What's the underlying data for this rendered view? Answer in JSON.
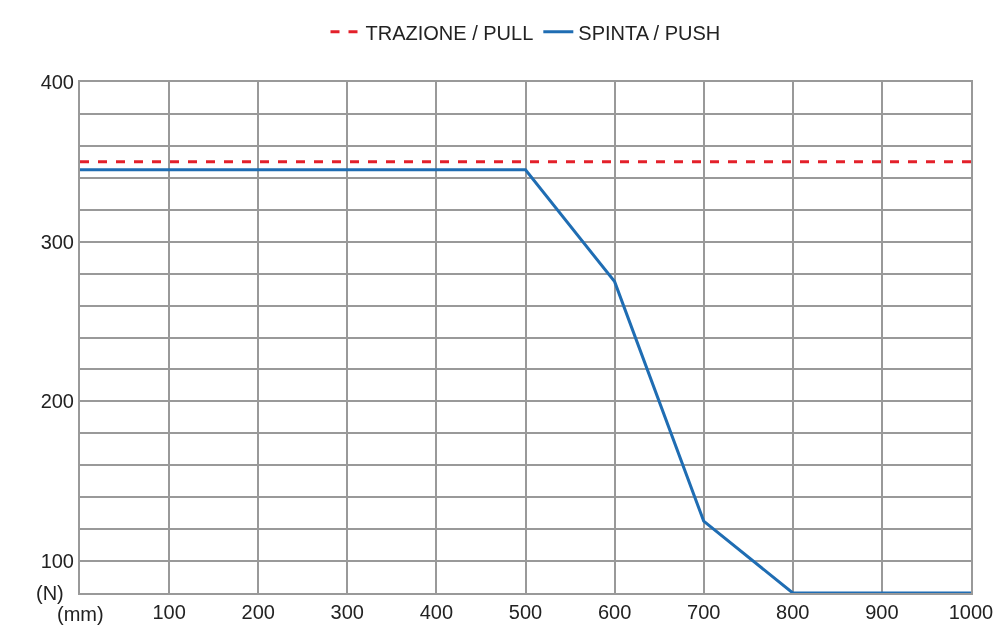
{
  "chart_data": {
    "type": "line",
    "xlabel": "(mm)",
    "ylabel": "(N)",
    "series": [
      {
        "name": "TRAZIONE / PULL",
        "color": "#e3202a",
        "line_style": "dashed",
        "x": [
          0,
          1000
        ],
        "values": [
          350,
          350
        ]
      },
      {
        "name": "SPINTA / PUSH",
        "color": "#1f6db3",
        "line_style": "solid",
        "x": [
          0,
          500,
          600,
          700,
          800,
          1000
        ],
        "values": [
          345,
          345,
          275,
          125,
          80,
          80
        ]
      }
    ],
    "xlim": [
      0,
      1000
    ],
    "xticks": [
      100,
      200,
      300,
      400,
      500,
      600,
      700,
      800,
      900,
      1000
    ],
    "ylim": [
      80,
      400
    ],
    "yticks": [
      {
        "value": 80,
        "label": null
      },
      100,
      {
        "value": 120,
        "label": null
      },
      {
        "value": 140,
        "label": null
      },
      {
        "value": 160,
        "label": null
      },
      {
        "value": 180,
        "label": null
      },
      200,
      {
        "value": 220,
        "label": null
      },
      {
        "value": 240,
        "label": null
      },
      {
        "value": 260,
        "label": null
      },
      {
        "value": 280,
        "label": null
      },
      300,
      {
        "value": 320,
        "label": null
      },
      {
        "value": 340,
        "label": null
      },
      {
        "value": 360,
        "label": null
      },
      {
        "value": 380,
        "label": null
      },
      400
    ],
    "grid": true,
    "legend": "top",
    "marker": "none"
  }
}
